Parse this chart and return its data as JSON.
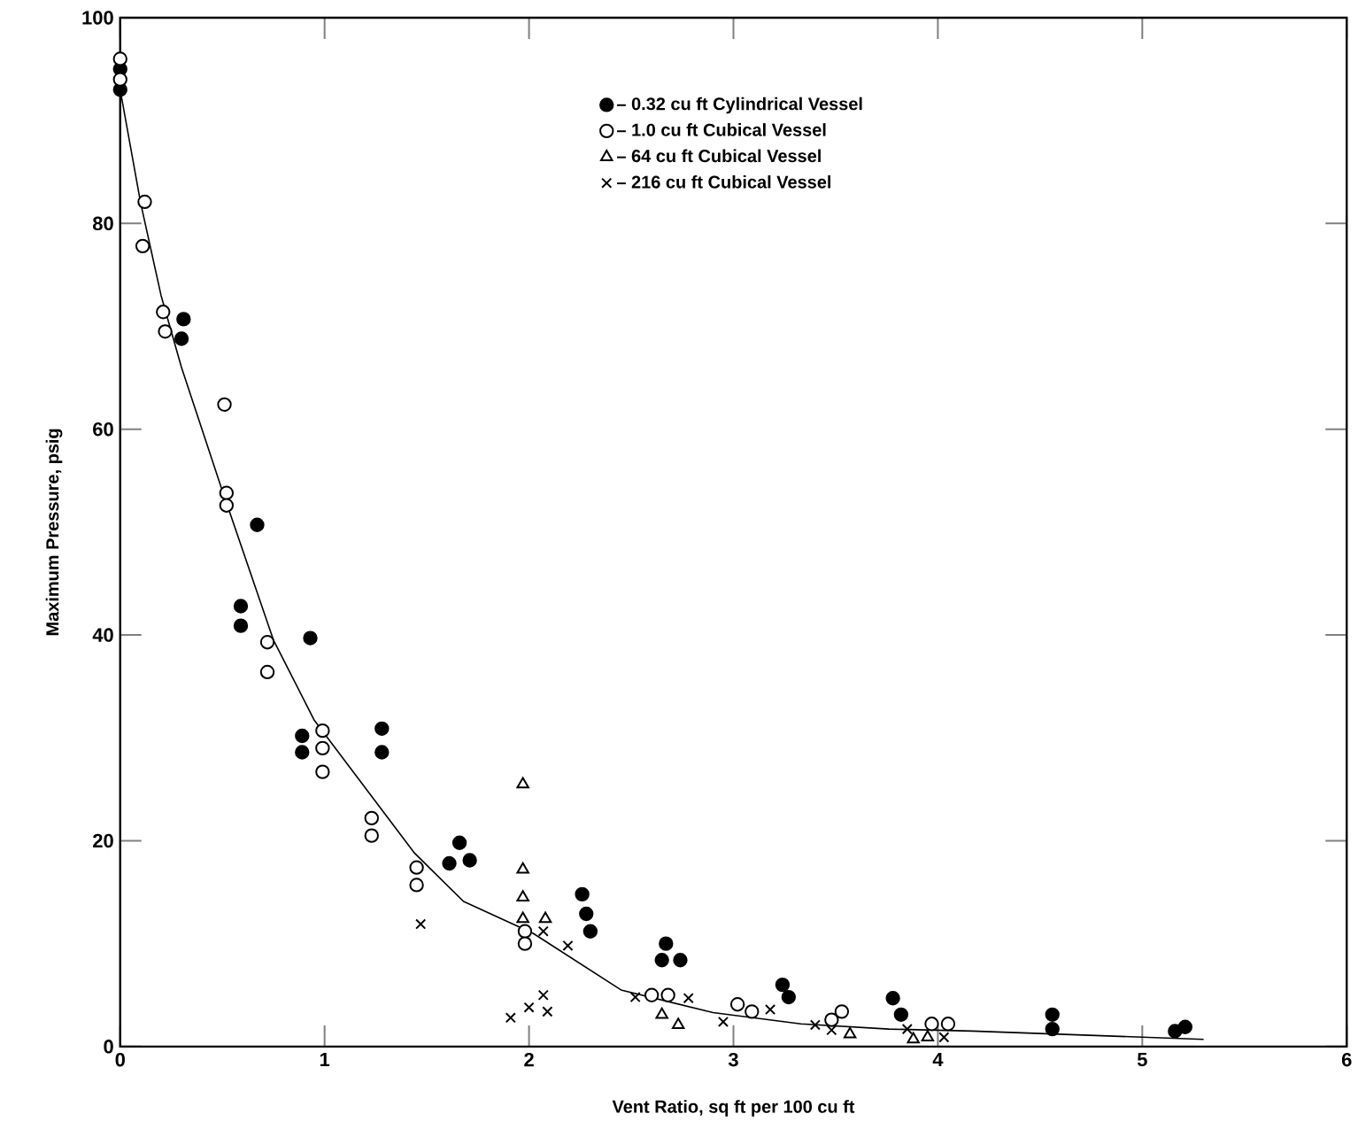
{
  "chart_data": {
    "type": "scatter",
    "xlabel": "Vent Ratio, sq ft per 100 cu ft",
    "ylabel": "Maximum Pressure, psig",
    "xlim": [
      0,
      6
    ],
    "ylim": [
      0,
      100
    ],
    "xticks": [
      0,
      1,
      2,
      3,
      4,
      5,
      6
    ],
    "yticks": [
      0,
      20,
      40,
      60,
      80,
      100
    ],
    "legend": "top",
    "grid": false,
    "series": [
      {
        "name": "– 0.32 cu ft Cylindrical Vessel",
        "color": "#000000",
        "marker": "circle",
        "x": [
          0,
          0,
          0.3,
          0.31,
          0.67,
          0.59,
          0.59,
          0.93,
          0.89,
          0.89,
          1.28,
          1.28,
          1.66,
          1.61,
          1.71,
          2.26,
          2.28,
          2.3,
          2.67,
          2.65,
          2.74,
          3.24,
          3.27,
          3.78,
          3.82,
          4.56,
          4.56,
          5.16,
          5.21
        ],
        "values": [
          95,
          93,
          68.8,
          70.7,
          50.7,
          42.8,
          40.9,
          39.7,
          30.2,
          28.6,
          30.9,
          28.6,
          19.8,
          17.8,
          18.1,
          14.8,
          12.9,
          11.2,
          10.0,
          8.4,
          8.4,
          6.0,
          4.8,
          4.7,
          3.1,
          3.1,
          1.7,
          1.5,
          1.9
        ]
      },
      {
        "name": "– 1.0  cu ft Cubical Vessel",
        "color": "#ffffff",
        "marker": "circle",
        "x": [
          0,
          0,
          0.12,
          0.11,
          0.21,
          0.22,
          0.51,
          0.52,
          0.52,
          0.72,
          0.72,
          0.99,
          0.99,
          0.99,
          1.23,
          1.23,
          1.45,
          1.45,
          1.98,
          1.98,
          2.6,
          2.68,
          3.02,
          3.09,
          3.48,
          3.53,
          3.97,
          4.05
        ],
        "values": [
          96,
          94,
          82.1,
          77.8,
          71.4,
          69.5,
          62.4,
          53.8,
          52.6,
          39.3,
          36.4,
          30.7,
          29.0,
          26.7,
          22.2,
          20.5,
          17.4,
          15.7,
          11.2,
          10.0,
          5.0,
          5.0,
          4.1,
          3.4,
          2.6,
          3.4,
          2.2,
          2.2
        ]
      },
      {
        "name": "– 64   cu ft Cubical Vessel",
        "color": "#ffffff",
        "marker": "triangle",
        "x": [
          1.97,
          1.97,
          1.97,
          1.97,
          2.08,
          2.65,
          2.73,
          3.57,
          3.88,
          3.95
        ],
        "values": [
          25.5,
          17.2,
          14.5,
          12.4,
          12.4,
          3.1,
          2.1,
          1.2,
          0.7,
          0.9
        ]
      },
      {
        "name": "– 216  cu ft Cubical Vessel",
        "color": "#000000",
        "marker": "cross",
        "x": [
          1.47,
          1.91,
          2.0,
          2.07,
          2.09,
          2.07,
          2.19,
          2.52,
          2.78,
          2.95,
          3.18,
          3.4,
          3.48,
          3.85,
          4.03
        ],
        "values": [
          11.9,
          2.8,
          3.8,
          5.0,
          3.4,
          11.2,
          9.8,
          4.8,
          4.7,
          2.4,
          3.6,
          2.1,
          1.6,
          1.7,
          0.9
        ]
      },
      {
        "type": "line",
        "color": "#000000",
        "marker": "none",
        "line_style": "solid",
        "x": [
          0,
          0.1,
          0.2,
          0.3,
          0.5,
          0.75,
          0.95,
          1.44,
          1.68,
          2.02,
          2.45,
          2.9,
          3.33,
          3.76,
          4.17,
          5.3
        ],
        "values": [
          93,
          82,
          73,
          66,
          54,
          39.5,
          31.7,
          18.8,
          14.1,
          11.0,
          5.5,
          3.3,
          2.2,
          1.7,
          1.5,
          0.7
        ]
      }
    ]
  }
}
